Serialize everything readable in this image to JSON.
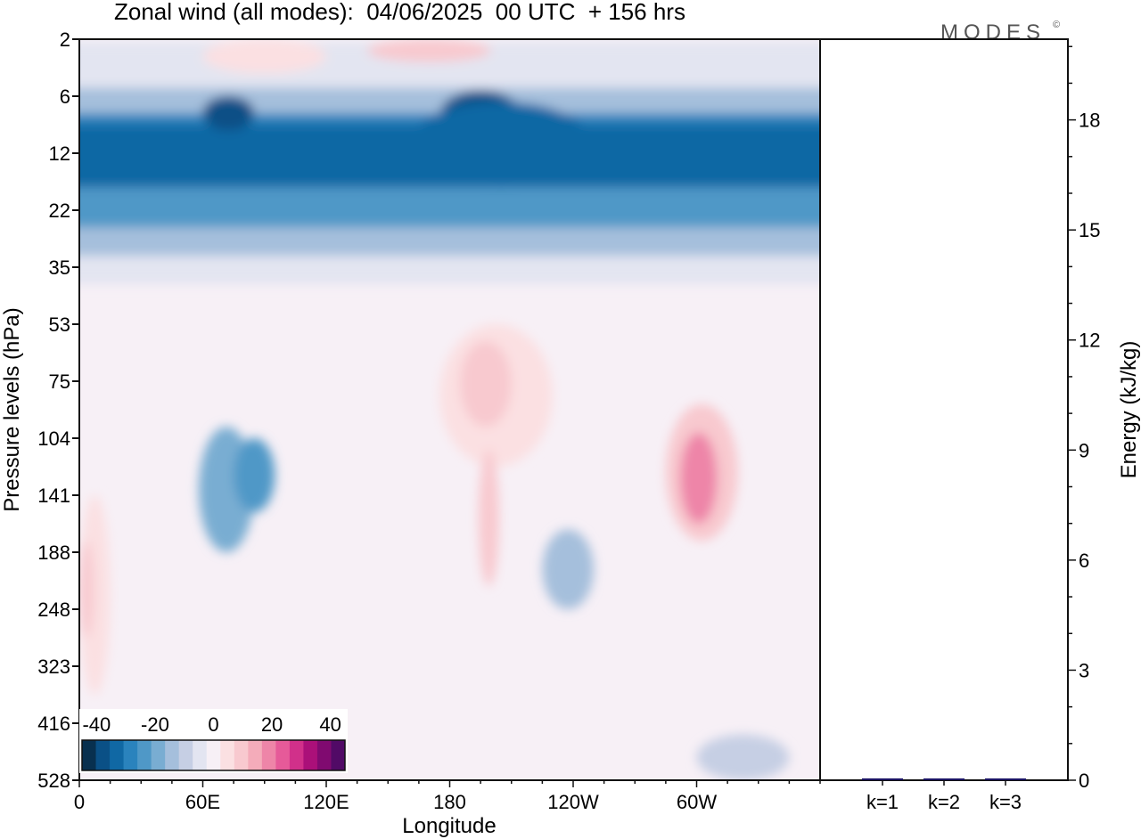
{
  "chart_data": [
    {
      "type": "heatmap",
      "title": "Zonal wind (all modes):  04/06/2025  00 UTC  + 156 hrs",
      "xlabel": "Longitude",
      "ylabel": "Pressure levels (hPa)",
      "x_ticks": [
        "0",
        "60E",
        "120E",
        "180",
        "120W",
        "60W"
      ],
      "x_tick_degrees": [
        0,
        60,
        120,
        180,
        240,
        300
      ],
      "xlim": [
        0,
        360
      ],
      "y_ticks": [
        "2",
        "6",
        "12",
        "22",
        "35",
        "53",
        "75",
        "104",
        "141",
        "188",
        "248",
        "323",
        "416",
        "528"
      ],
      "y_scale": "ordinal pressure levels, top 2 hPa to bottom 528 hPa",
      "colorbar": {
        "ticks": [
          "-40",
          "-20",
          "0",
          "20",
          "40"
        ],
        "range": [
          -45,
          45
        ],
        "step": 5,
        "colors": [
          "#08304f",
          "#0a5086",
          "#1068a4",
          "#2a83bd",
          "#4f98c7",
          "#79add2",
          "#a5bfdc",
          "#c6cfe4",
          "#e3e5f1",
          "#f7f0f6",
          "#fbe0e2",
          "#f8c9cf",
          "#f4acba",
          "#ee85a8",
          "#e65a99",
          "#d1308a",
          "#ab1079",
          "#800a70",
          "#510a66"
        ]
      },
      "features": [
        {
          "label": "stratospheric easterlies",
          "level_range_hPa": [
            6,
            35
          ],
          "lon_range": [
            0,
            360
          ],
          "min_value": -40
        },
        {
          "label": "westerly max near 60W",
          "level_hPa": 141,
          "lon": 295,
          "max_value": 22
        }
      ]
    },
    {
      "type": "bar",
      "categories": [
        "k=1",
        "k=2",
        "k=3"
      ],
      "values": [
        0.05,
        0.03,
        0.01
      ],
      "ylabel": "Energy (kJ/kg)",
      "y_ticks": [
        "0",
        "3",
        "6",
        "9",
        "12",
        "15",
        "18"
      ],
      "ylim": [
        0,
        20.2
      ],
      "bar_color": "#1b1464"
    }
  ],
  "branding": {
    "logo_text": "MODES",
    "mark": "©"
  }
}
